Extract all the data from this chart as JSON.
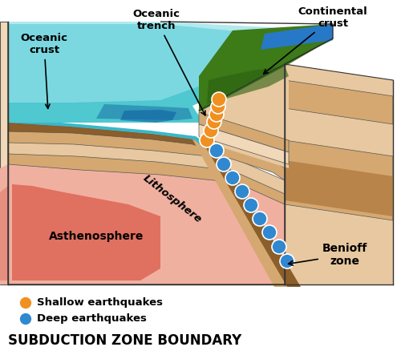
{
  "title": "SUBDUCTION ZONE BOUNDARY",
  "title_fontsize": 12,
  "fig_width": 5.0,
  "fig_height": 4.38,
  "dpi": 100,
  "background_color": "#ffffff",
  "labels": {
    "oceanic_crust": "Oceanic\ncrust",
    "oceanic_trench": "Oceanic\ntrench",
    "continental_crust": "Continental\ncrust",
    "asthenosphere": "Asthenosphere",
    "lithosphere": "Lithosphere",
    "benioff_zone": "Benioff\nzone",
    "shallow_eq": "Shallow earthquakes",
    "deep_eq": "Deep earthquakes"
  },
  "colors": {
    "ocean_water": "#4fc8d0",
    "ocean_water_mid": "#38b8c8",
    "ocean_water_dark": "#2888b0",
    "ocean_top_edge": "#90e0e8",
    "oceanic_crust_dark": "#8b5e2a",
    "oceanic_crust_mid": "#b8844a",
    "mantle_tan": "#d4a870",
    "mantle_light": "#e8c8a0",
    "mantle_peach": "#f0d8b8",
    "asthenosphere_pink": "#f0b0a0",
    "asthenosphere_red": "#e07060",
    "continental_green_dark": "#2a6010",
    "continental_green_mid": "#3d7a18",
    "continental_green_light": "#5a9028",
    "cont_water_blue": "#2060c0",
    "shallow_eq_color": "#f09020",
    "deep_eq_color": "#3088d0",
    "outline": "#555555",
    "text_color": "#000000"
  }
}
